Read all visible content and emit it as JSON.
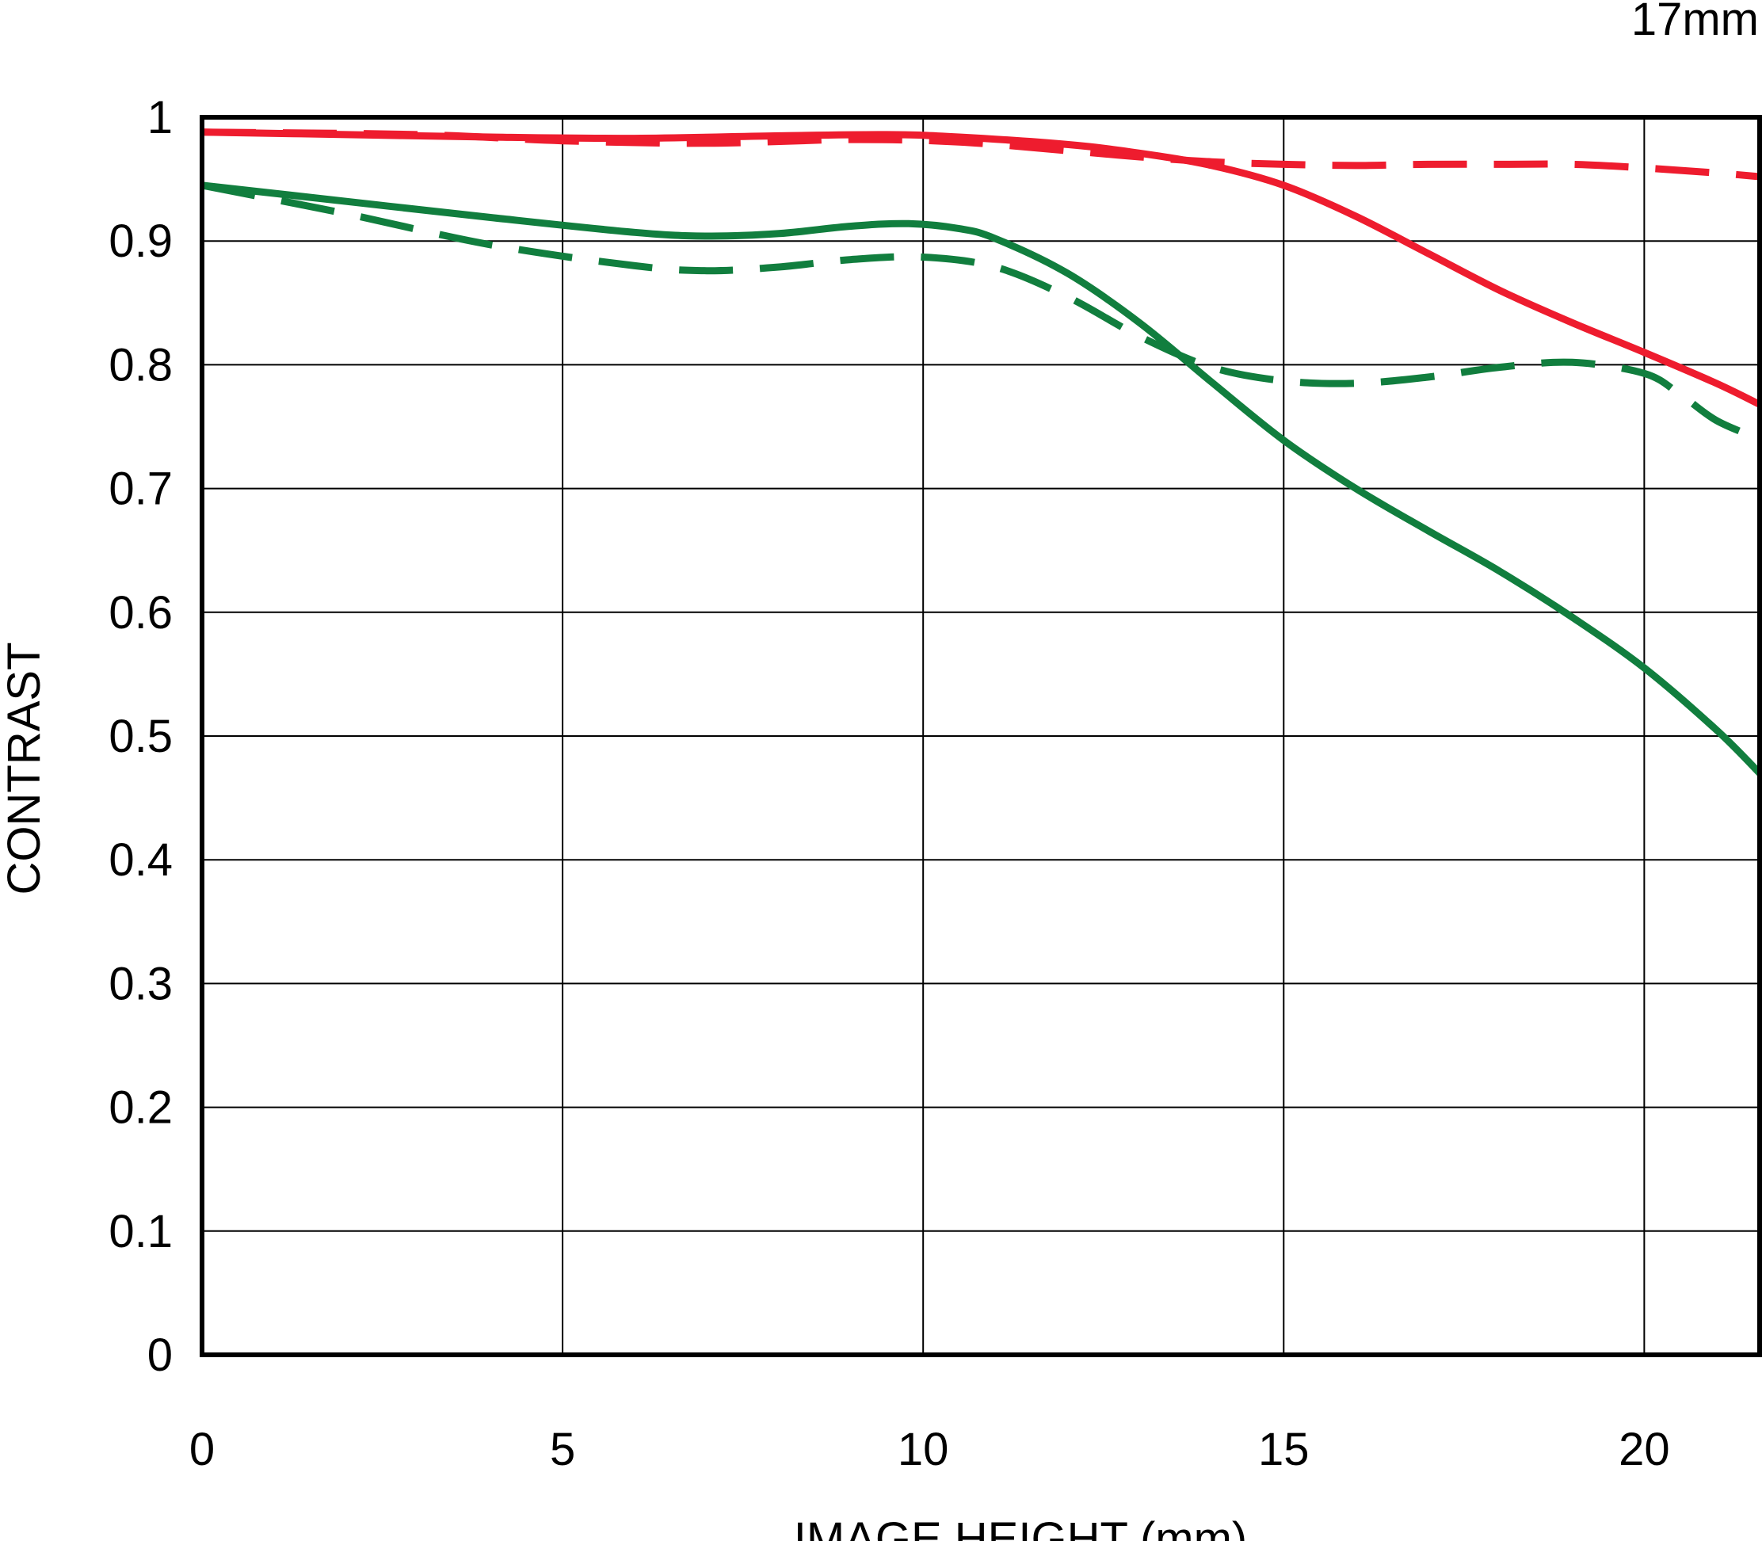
{
  "chart_data": {
    "type": "line",
    "title": "17mm",
    "xlabel": "IMAGE HEIGHT (mm)",
    "ylabel": "CONTRAST",
    "xlim": [
      0,
      21.6
    ],
    "ylim": [
      0,
      1
    ],
    "x_ticks": [
      0,
      5,
      10,
      15,
      20
    ],
    "x_tick_labels": [
      "0",
      "5",
      "10",
      "15",
      "20"
    ],
    "y_ticks": [
      0,
      0.1,
      0.2,
      0.3,
      0.4,
      0.5,
      0.6,
      0.7,
      0.8,
      0.9,
      1
    ],
    "y_tick_labels": [
      "0",
      "0.1",
      "0.2",
      "0.3",
      "0.4",
      "0.5",
      "0.6",
      "0.7",
      "0.8",
      "0.9",
      "1"
    ],
    "grid": true,
    "series": [
      {
        "color": "#ee1c2e",
        "dash": "solid",
        "points": [
          [
            0,
            0.988
          ],
          [
            2,
            0.986
          ],
          [
            4,
            0.984
          ],
          [
            6,
            0.983
          ],
          [
            8,
            0.985
          ],
          [
            9.5,
            0.986
          ],
          [
            10.5,
            0.984
          ],
          [
            12,
            0.978
          ],
          [
            13,
            0.971
          ],
          [
            14,
            0.961
          ],
          [
            15,
            0.945
          ],
          [
            16,
            0.92
          ],
          [
            17,
            0.89
          ],
          [
            18,
            0.86
          ],
          [
            19,
            0.834
          ],
          [
            20,
            0.81
          ],
          [
            21,
            0.785
          ],
          [
            21.6,
            0.768
          ]
        ]
      },
      {
        "color": "#ee1c2e",
        "dash": "dashed",
        "points": [
          [
            0,
            0.988
          ],
          [
            3,
            0.986
          ],
          [
            5,
            0.981
          ],
          [
            7,
            0.979
          ],
          [
            9,
            0.982
          ],
          [
            10.5,
            0.98
          ],
          [
            12,
            0.973
          ],
          [
            13,
            0.968
          ],
          [
            14,
            0.964
          ],
          [
            15,
            0.962
          ],
          [
            16,
            0.961
          ],
          [
            17,
            0.962
          ],
          [
            18,
            0.962
          ],
          [
            19,
            0.962
          ],
          [
            20,
            0.959
          ],
          [
            21,
            0.955
          ],
          [
            21.6,
            0.952
          ]
        ]
      },
      {
        "color": "#117e3e",
        "dash": "solid",
        "points": [
          [
            0,
            0.945
          ],
          [
            2,
            0.932
          ],
          [
            4,
            0.919
          ],
          [
            6,
            0.907
          ],
          [
            7,
            0.904
          ],
          [
            8,
            0.906
          ],
          [
            9,
            0.912
          ],
          [
            9.8,
            0.914
          ],
          [
            10.5,
            0.91
          ],
          [
            11,
            0.902
          ],
          [
            12,
            0.874
          ],
          [
            13,
            0.834
          ],
          [
            14,
            0.786
          ],
          [
            15,
            0.739
          ],
          [
            16,
            0.7
          ],
          [
            17,
            0.666
          ],
          [
            18,
            0.633
          ],
          [
            19,
            0.596
          ],
          [
            20,
            0.555
          ],
          [
            21,
            0.505
          ],
          [
            21.6,
            0.47
          ]
        ]
      },
      {
        "color": "#117e3e",
        "dash": "dashed",
        "points": [
          [
            0,
            0.945
          ],
          [
            2,
            0.922
          ],
          [
            4,
            0.897
          ],
          [
            6,
            0.88
          ],
          [
            7,
            0.876
          ],
          [
            8,
            0.879
          ],
          [
            9,
            0.885
          ],
          [
            10,
            0.887
          ],
          [
            11,
            0.879
          ],
          [
            12,
            0.855
          ],
          [
            13,
            0.823
          ],
          [
            14,
            0.798
          ],
          [
            15,
            0.787
          ],
          [
            16,
            0.785
          ],
          [
            17,
            0.79
          ],
          [
            18,
            0.798
          ],
          [
            19,
            0.802
          ],
          [
            20,
            0.793
          ],
          [
            20.5,
            0.776
          ],
          [
            21,
            0.755
          ],
          [
            21.6,
            0.74
          ]
        ]
      }
    ]
  }
}
